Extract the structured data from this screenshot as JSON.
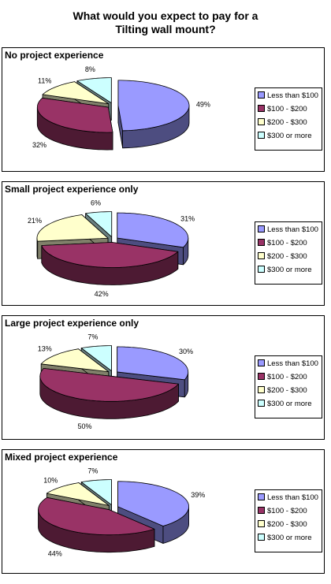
{
  "title": "What would you expect to pay for a\nTilting wall mount?",
  "legend": [
    "Less than $100",
    "$100 - $200",
    "$200 - $300",
    "$300 or more"
  ],
  "colors": {
    "top": [
      "#9a9aff",
      "#993366",
      "#ffffcc",
      "#ccffff"
    ],
    "side": [
      "#4d4d80",
      "#4d1a33",
      "#80806a",
      "#6a8080"
    ]
  },
  "chart_data": [
    {
      "type": "pie",
      "title": "No project experience",
      "categories": [
        "Less than $100",
        "$100 - $200",
        "$200 - $300",
        "$300 or more"
      ],
      "values": [
        49,
        32,
        11,
        8
      ],
      "labels": [
        "49%",
        "32%",
        "11%",
        "8%"
      ]
    },
    {
      "type": "pie",
      "title": "Small project experience only",
      "categories": [
        "Less than $100",
        "$100 - $200",
        "$200 - $300",
        "$300 or more"
      ],
      "values": [
        31,
        42,
        21,
        6
      ],
      "labels": [
        "31%",
        "42%",
        "21%",
        "6%"
      ]
    },
    {
      "type": "pie",
      "title": "Large project experience only",
      "categories": [
        "Less than $100",
        "$100 - $200",
        "$200 - $300",
        "$300 or more"
      ],
      "values": [
        30,
        50,
        13,
        7
      ],
      "labels": [
        "30%",
        "50%",
        "13%",
        "7%"
      ]
    },
    {
      "type": "pie",
      "title": "Mixed project experience",
      "categories": [
        "Less than $100",
        "$100 - $200",
        "$200 - $300",
        "$300 or more"
      ],
      "values": [
        39,
        44,
        10,
        7
      ],
      "labels": [
        "39%",
        "44%",
        "10%",
        "7%"
      ]
    }
  ]
}
